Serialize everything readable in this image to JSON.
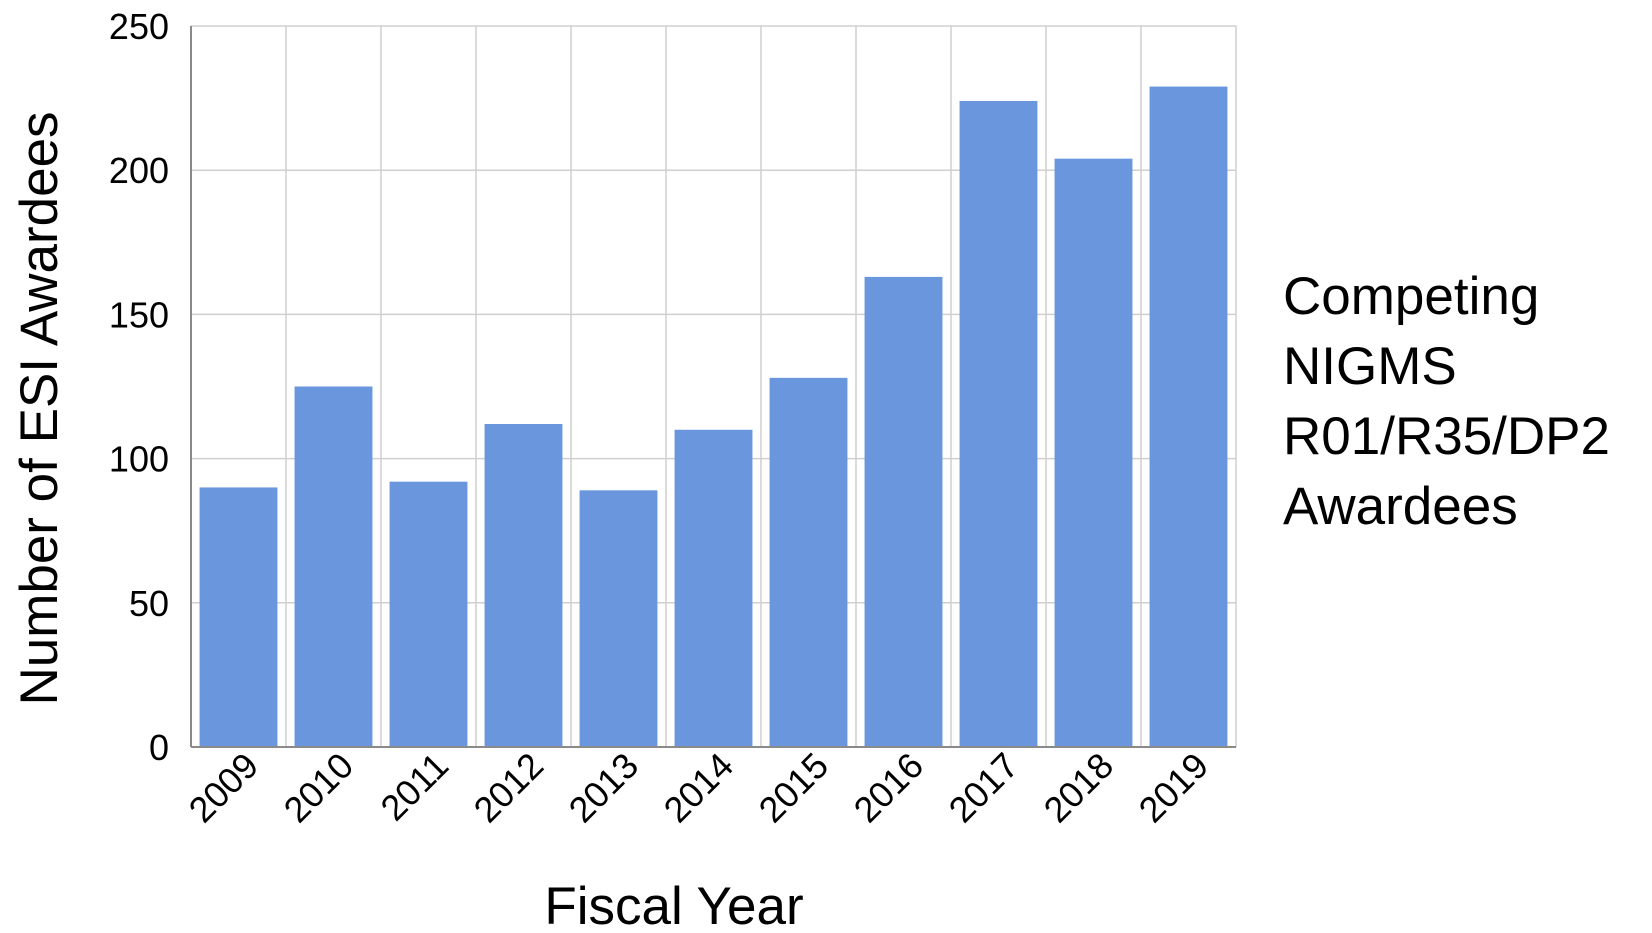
{
  "chart_data": {
    "type": "bar",
    "categories": [
      "2009",
      "2010",
      "2011",
      "2012",
      "2013",
      "2014",
      "2015",
      "2016",
      "2017",
      "2018",
      "2019"
    ],
    "series": [
      {
        "values": [
          90,
          125,
          92,
          112,
          89,
          110,
          128,
          163,
          224,
          204,
          229
        ]
      }
    ],
    "xlabel": "Fiscal Year",
    "ylabel": "Number of ESI Awardees",
    "ylim": [
      0,
      250
    ],
    "yticks": [
      "0",
      "50",
      "100",
      "150",
      "200",
      "250"
    ],
    "grid": true,
    "bar_color": "#6a96dd",
    "annotation": {
      "lines": [
        "Competing",
        "NIGMS",
        "R01/R35/DP2",
        "Awardees"
      ]
    }
  }
}
